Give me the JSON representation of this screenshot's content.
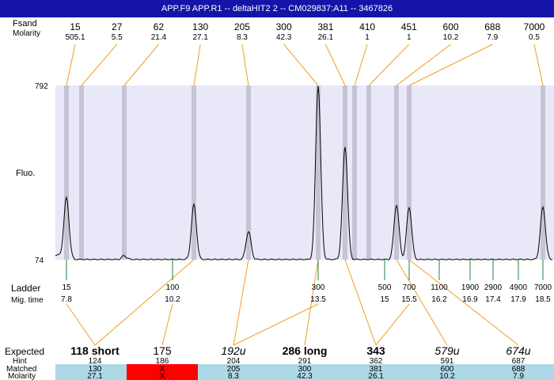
{
  "window": {
    "title": "APP.F9  APP.R1 -- deltaHIT2 2 -- CM029837:A11 -- 3467826"
  },
  "labels": {
    "top_row1": "Fsand",
    "top_row2": "Molarity",
    "y_axis": "Fluo.",
    "ladder": "Ladder",
    "mig_time": "Mig. time",
    "expected": "Expected",
    "hint": "Hint",
    "matched": "Matched",
    "molarity": "Molarity"
  },
  "colors": {
    "title_bar": "#1414a8",
    "plot_bg": "#e8e8f8",
    "band": "#c4c4d4",
    "connector": "#f0a020",
    "ladder_tick": "#208040",
    "row_bg": "#add8e6",
    "mismatch": "#ff0000",
    "trace": "#000000"
  },
  "chart_data": {
    "type": "line",
    "ylim": [
      74,
      792
    ],
    "y_ticks": [
      792,
      74
    ],
    "fragments": [
      {
        "size": "15",
        "molarity": "505.1",
        "mig": 7.8
      },
      {
        "size": "27",
        "molarity": "5.5",
        "mig": 8.4
      },
      {
        "size": "62",
        "molarity": "21.4",
        "mig": 9.3
      },
      {
        "size": "130",
        "molarity": "27.1",
        "mig": 10.4
      },
      {
        "size": "205",
        "molarity": "8.3",
        "mig": 11.7
      },
      {
        "size": "300",
        "molarity": "42.3",
        "mig": 13.5
      },
      {
        "size": "381",
        "molarity": "26.1",
        "mig": 14.1
      },
      {
        "size": "410",
        "molarity": "1",
        "mig": 14.3
      },
      {
        "size": "451",
        "molarity": "1",
        "mig": 14.6
      },
      {
        "size": "600",
        "molarity": "10.2",
        "mig": 15.3
      },
      {
        "size": "688",
        "molarity": "7.9",
        "mig": 15.5
      },
      {
        "size": "7000",
        "molarity": "0.5",
        "mig": 18.5
      }
    ],
    "peaks": [
      {
        "mig": 7.8,
        "height": 320
      },
      {
        "mig": 9.3,
        "height": 90
      },
      {
        "mig": 10.4,
        "height": 300
      },
      {
        "mig": 11.7,
        "height": 190
      },
      {
        "mig": 13.5,
        "height": 792
      },
      {
        "mig": 14.1,
        "height": 540
      },
      {
        "mig": 15.3,
        "height": 300
      },
      {
        "mig": 15.5,
        "height": 290
      },
      {
        "mig": 18.5,
        "height": 290
      }
    ],
    "ladder": [
      {
        "size": "15",
        "mig": "7.8"
      },
      {
        "size": "100",
        "mig": "10.2"
      },
      {
        "size": "300",
        "mig": "13.5"
      },
      {
        "size": "500",
        "mig": "15"
      },
      {
        "size": "700",
        "mig": "15.5"
      },
      {
        "size": "1100",
        "mig": "16.2"
      },
      {
        "size": "1900",
        "mig": "16.9"
      },
      {
        "size": "2900",
        "mig": "17.4"
      },
      {
        "size": "4900",
        "mig": "17.9"
      },
      {
        "size": "7000",
        "mig": "18.5"
      }
    ],
    "ladder_links": [
      {
        "mig": 7.8,
        "to": 0
      },
      {
        "mig": 10.2,
        "to": 1
      },
      {
        "mig": 13.5,
        "to": 2
      },
      {
        "mig": 15.5,
        "to": 4
      }
    ],
    "expected": [
      {
        "name": "118 short",
        "style": "bold",
        "hint": "124",
        "matched": "130",
        "molarity": "27.1",
        "mig": 10.4
      },
      {
        "name": "175",
        "style": "normal",
        "hint": "186",
        "matched": "X",
        "molarity": "X",
        "mismatch": true
      },
      {
        "name": "192u",
        "style": "italic",
        "hint": "204",
        "matched": "205",
        "molarity": "8.3",
        "mig": 11.7
      },
      {
        "name": "286 long",
        "style": "bold",
        "hint": "291",
        "matched": "300",
        "molarity": "42.3",
        "mig": 13.5
      },
      {
        "name": "343",
        "style": "bold",
        "hint": "362",
        "matched": "381",
        "molarity": "26.1",
        "mig": 14.1
      },
      {
        "name": "579u",
        "style": "italic",
        "hint": "591",
        "matched": "600",
        "molarity": "10.2",
        "mig": 15.3
      },
      {
        "name": "674u",
        "style": "italic",
        "hint": "687",
        "matched": "688",
        "molarity": "7.9",
        "mig": 15.5
      }
    ]
  }
}
